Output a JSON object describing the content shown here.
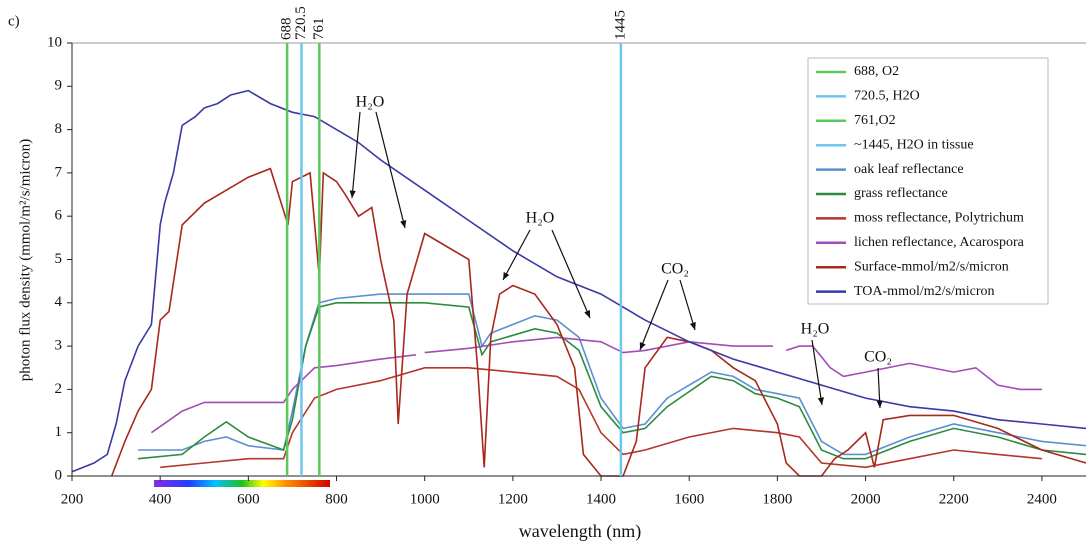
{
  "chart_data": {
    "type": "line",
    "panel_label": "c)",
    "ylabel": "photon flux density (mmol/m²/s/micron)",
    "xlabel": "wavelength (nm)",
    "xlim": [
      200,
      2500
    ],
    "xticks": [
      200,
      400,
      600,
      800,
      1000,
      1200,
      1400,
      1600,
      1800,
      2000,
      2200,
      2400
    ],
    "ylim": [
      0,
      10
    ],
    "yticks": [
      0,
      1,
      2,
      3,
      4,
      5,
      6,
      7,
      8,
      9,
      10
    ],
    "vlines": [
      {
        "name": "688, O2",
        "x": 688,
        "color": "#5cc85c"
      },
      {
        "name": "720.5, H2O",
        "x": 720.5,
        "color": "#6cc6ee"
      },
      {
        "name": "761,O2",
        "x": 761,
        "color": "#5cc85c"
      },
      {
        "name": "~1445, H2O in tissue",
        "x": 1445,
        "color": "#6cc6ee"
      }
    ],
    "series": [
      {
        "name": "oak leaf reflectance",
        "color": "#5b8fd0",
        "x": [
          350,
          450,
          500,
          550,
          600,
          680,
          700,
          730,
          760,
          800,
          900,
          1000,
          1100,
          1130,
          1150,
          1250,
          1300,
          1350,
          1400,
          1450,
          1500,
          1550,
          1650,
          1700,
          1750,
          1800,
          1850,
          1900,
          1950,
          2000,
          2100,
          2200,
          2300,
          2400,
          2500
        ],
        "values": [
          0.6,
          0.6,
          0.8,
          0.9,
          0.7,
          0.6,
          1.5,
          3.0,
          4.0,
          4.1,
          4.2,
          4.2,
          4.2,
          3.0,
          3.3,
          3.7,
          3.6,
          3.2,
          1.8,
          1.1,
          1.2,
          1.8,
          2.4,
          2.3,
          2.0,
          1.9,
          1.8,
          0.8,
          0.5,
          0.5,
          0.9,
          1.2,
          1.0,
          0.8,
          0.7
        ]
      },
      {
        "name": "grass reflectance",
        "color": "#2e8b3e",
        "x": [
          350,
          450,
          500,
          550,
          600,
          680,
          700,
          730,
          760,
          800,
          900,
          1000,
          1100,
          1130,
          1150,
          1250,
          1300,
          1350,
          1400,
          1450,
          1500,
          1550,
          1650,
          1700,
          1750,
          1800,
          1850,
          1900,
          1950,
          2000,
          2100,
          2200,
          2300,
          2400,
          2500
        ],
        "values": [
          0.4,
          0.5,
          0.9,
          1.25,
          0.9,
          0.6,
          1.3,
          3.0,
          3.9,
          4.0,
          4.0,
          4.0,
          3.9,
          2.8,
          3.1,
          3.4,
          3.3,
          2.9,
          1.6,
          1.0,
          1.1,
          1.6,
          2.3,
          2.2,
          1.9,
          1.8,
          1.6,
          0.6,
          0.4,
          0.4,
          0.8,
          1.1,
          0.9,
          0.6,
          0.5
        ]
      },
      {
        "name": "moss reflectance, Polytrichum",
        "color": "#b5352a",
        "x": [
          400,
          500,
          600,
          680,
          700,
          750,
          800,
          900,
          1000,
          1100,
          1200,
          1300,
          1350,
          1400,
          1450,
          1500,
          1600,
          1700,
          1800,
          1850,
          1900,
          2000,
          2100,
          2200,
          2300,
          2400
        ],
        "values": [
          0.2,
          0.3,
          0.4,
          0.4,
          1.0,
          1.8,
          2.0,
          2.2,
          2.5,
          2.5,
          2.4,
          2.3,
          2.0,
          1.0,
          0.5,
          0.6,
          0.9,
          1.1,
          1.0,
          0.9,
          0.3,
          0.2,
          0.4,
          0.6,
          0.5,
          0.4
        ]
      },
      {
        "name": "lichen reflectance, Acarospora",
        "color": "#a24cb8",
        "x": [
          380,
          450,
          500,
          600,
          680,
          700,
          750,
          800,
          900,
          980,
          990,
          1000,
          1100,
          1200,
          1300,
          1400,
          1450,
          1500,
          1600,
          1700,
          1790,
          1805,
          1820,
          1850,
          1880,
          1920,
          1950,
          2000,
          2100,
          2200,
          2250,
          2300,
          2350,
          2400
        ],
        "values": [
          1.0,
          1.5,
          1.7,
          1.7,
          1.7,
          2.0,
          2.5,
          2.55,
          2.7,
          2.8,
          null,
          2.85,
          2.95,
          3.1,
          3.2,
          3.1,
          2.85,
          2.9,
          3.1,
          3.0,
          3.0,
          null,
          2.9,
          3.0,
          3.0,
          2.5,
          2.3,
          2.4,
          2.6,
          2.4,
          2.5,
          2.1,
          2.0,
          2.0
        ]
      },
      {
        "name": "Surface-mmol/m2/s/micron",
        "color": "#a8281c",
        "x": [
          290,
          320,
          350,
          380,
          400,
          420,
          450,
          500,
          550,
          600,
          650,
          690,
          700,
          740,
          761,
          770,
          800,
          820,
          850,
          880,
          900,
          930,
          940,
          960,
          1000,
          1050,
          1100,
          1120,
          1135,
          1150,
          1170,
          1200,
          1250,
          1300,
          1340,
          1360,
          1400,
          1450,
          1480,
          1500,
          1550,
          1600,
          1650,
          1700,
          1750,
          1800,
          1820,
          1850,
          1900,
          1930,
          1960,
          2000,
          2020,
          2040,
          2100,
          2200,
          2300,
          2400,
          2500
        ],
        "values": [
          0,
          0.8,
          1.5,
          2.0,
          3.6,
          3.8,
          5.8,
          6.3,
          6.6,
          6.9,
          7.1,
          5.8,
          6.8,
          7.0,
          4.6,
          7.0,
          6.8,
          6.5,
          6.0,
          6.2,
          5.0,
          3.6,
          1.2,
          4.2,
          5.6,
          5.3,
          5.0,
          2.5,
          0.2,
          3.2,
          4.2,
          4.4,
          4.2,
          3.5,
          2.5,
          0.5,
          0,
          0,
          0.8,
          2.5,
          3.2,
          3.1,
          2.9,
          2.5,
          2.2,
          1.2,
          0.3,
          0,
          0,
          0.4,
          0.6,
          1.0,
          0.2,
          1.3,
          1.4,
          1.4,
          1.1,
          0.6,
          0.3
        ]
      },
      {
        "name": "TOA-mmol/m2/s/micron",
        "color": "#3a3aa6",
        "x": [
          200,
          250,
          280,
          300,
          320,
          350,
          380,
          400,
          410,
          430,
          450,
          480,
          500,
          530,
          560,
          600,
          650,
          700,
          750,
          800,
          850,
          900,
          1000,
          1100,
          1200,
          1300,
          1400,
          1500,
          1600,
          1700,
          1800,
          1900,
          2000,
          2100,
          2200,
          2300,
          2400,
          2500
        ],
        "values": [
          0.1,
          0.3,
          0.5,
          1.2,
          2.2,
          3.0,
          3.5,
          5.8,
          6.3,
          7.0,
          8.1,
          8.3,
          8.5,
          8.6,
          8.8,
          8.9,
          8.6,
          8.4,
          8.3,
          8.0,
          7.7,
          7.3,
          6.6,
          5.9,
          5.2,
          4.6,
          4.2,
          3.6,
          3.1,
          2.7,
          2.4,
          2.1,
          1.8,
          1.6,
          1.5,
          1.3,
          1.2,
          1.1
        ]
      }
    ],
    "annotations": [
      "H₂O",
      "H₂O",
      "CO₂",
      "H₂O",
      "CO₂"
    ]
  }
}
